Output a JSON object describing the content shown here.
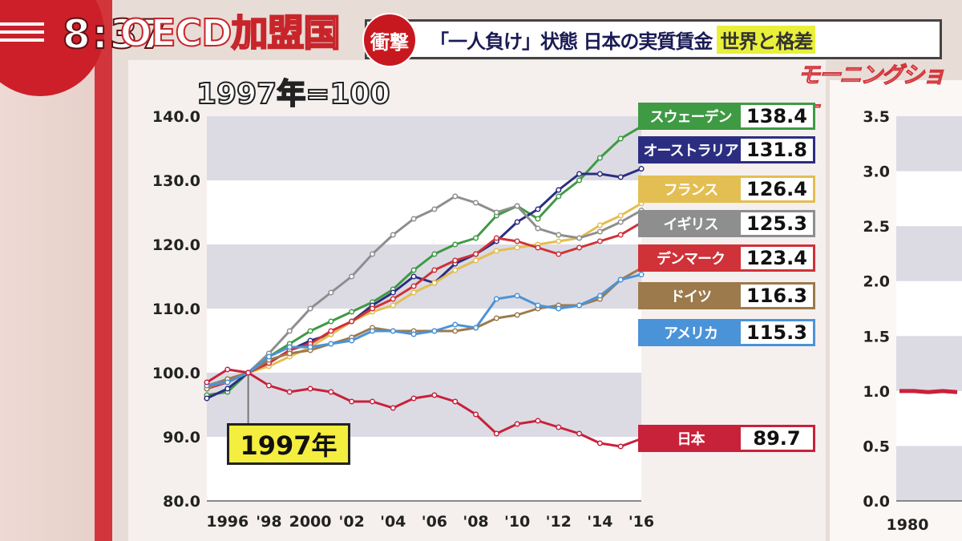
{
  "clock": "8:37",
  "header": {
    "title_bg": "OECD加盟国",
    "shock_badge": "衝撃",
    "headline": "「一人負け」状態 日本の実質賃金",
    "highlight": "世界と格差",
    "show_logo": "モーニングショー"
  },
  "base_label": "1997年=100",
  "callout_label": "1997年",
  "colors": {
    "sweden": "#3f9a44",
    "australia": "#2b2e80",
    "france": "#e3be52",
    "uk": "#8e8e8e",
    "denmark": "#cf3238",
    "germany": "#9c7a4c",
    "usa": "#4b93d8",
    "japan": "#c8213a"
  },
  "chart_data": [
    {
      "type": "line",
      "title": "1997年=100",
      "ylim": [
        80,
        140
      ],
      "yticks": [
        "140.0",
        "130.0",
        "120.0",
        "110.0",
        "100.0",
        "90.0",
        "80.0"
      ],
      "xticks": [
        "1996",
        "'98",
        "2000",
        "'02",
        "'04",
        "'06",
        "'08",
        "'10",
        "'12",
        "'14",
        "'16"
      ],
      "x": [
        1995,
        1996,
        1997,
        1998,
        1999,
        2000,
        2001,
        2002,
        2003,
        2004,
        2005,
        2006,
        2007,
        2008,
        2009,
        2010,
        2011,
        2012,
        2013,
        2014,
        2015,
        2016
      ],
      "series": [
        {
          "name": "スウェーデン",
          "key": "sweden",
          "end_value": "138.4",
          "values": [
            96.5,
            97.0,
            100,
            102.5,
            104.5,
            106.5,
            108.0,
            109.5,
            111.0,
            113.0,
            116.0,
            118.5,
            120.0,
            121.0,
            124.5,
            126.0,
            124.0,
            127.5,
            130.0,
            133.5,
            136.5,
            138.4
          ]
        },
        {
          "name": "オーストラリア",
          "key": "australia",
          "end_value": "131.8",
          "values": [
            96.0,
            97.5,
            100,
            101.5,
            103.5,
            105.0,
            106.0,
            108.0,
            110.5,
            112.5,
            115.0,
            114.0,
            117.0,
            118.5,
            120.5,
            123.5,
            125.5,
            128.5,
            131.0,
            131.0,
            130.5,
            131.8
          ]
        },
        {
          "name": "フランス",
          "key": "france",
          "end_value": "126.4",
          "values": [
            98.0,
            99.0,
            100,
            101.0,
            102.5,
            104.0,
            106.0,
            108.0,
            109.5,
            110.5,
            112.5,
            114.0,
            116.0,
            117.5,
            119.0,
            119.5,
            120.0,
            120.5,
            121.0,
            123.0,
            124.5,
            126.4
          ]
        },
        {
          "name": "イギリス",
          "key": "uk",
          "end_value": "125.3",
          "values": [
            98.0,
            99.0,
            100,
            103.0,
            106.5,
            110.0,
            112.5,
            115.0,
            118.5,
            121.5,
            124.0,
            125.5,
            127.5,
            126.5,
            125.0,
            126.0,
            122.5,
            121.5,
            121.0,
            122.0,
            123.5,
            125.3
          ]
        },
        {
          "name": "デンマーク",
          "key": "denmark",
          "end_value": "123.4",
          "values": [
            97.5,
            98.5,
            100,
            101.5,
            103.5,
            104.5,
            106.5,
            108.0,
            110.0,
            111.5,
            113.5,
            116.0,
            117.5,
            118.5,
            121.0,
            120.5,
            119.5,
            118.5,
            119.5,
            120.5,
            121.5,
            123.4
          ]
        },
        {
          "name": "ドイツ",
          "key": "germany",
          "end_value": "116.3",
          "values": [
            97.5,
            99.0,
            100,
            102.0,
            103.0,
            103.5,
            104.5,
            105.5,
            107.0,
            106.5,
            106.5,
            106.5,
            106.5,
            107.0,
            108.5,
            109.0,
            110.0,
            110.5,
            110.5,
            111.5,
            114.5,
            116.3
          ]
        },
        {
          "name": "アメリカ",
          "key": "usa",
          "end_value": "115.3",
          "values": [
            98.0,
            98.5,
            100,
            102.5,
            104.0,
            104.0,
            104.5,
            105.0,
            106.5,
            106.5,
            106.0,
            106.5,
            107.5,
            107.0,
            111.5,
            112.0,
            110.5,
            110.0,
            110.5,
            112.0,
            114.5,
            115.3
          ]
        },
        {
          "name": "日本",
          "key": "japan",
          "end_value": "89.7",
          "values": [
            98.5,
            100.5,
            100,
            98.0,
            97.0,
            97.5,
            97.0,
            95.5,
            95.5,
            94.5,
            96.0,
            96.5,
            95.5,
            93.5,
            90.5,
            92.0,
            92.5,
            91.5,
            90.5,
            89.0,
            88.5,
            89.7
          ]
        }
      ]
    },
    {
      "type": "line",
      "ylim": [
        0,
        3.5
      ],
      "yticks": [
        "3.5",
        "3.0",
        "2.5",
        "2.0",
        "1.5",
        "1.0",
        "0.5",
        "0.0"
      ],
      "xticks": [
        "1980"
      ],
      "series": [
        {
          "key": "japan",
          "x": [
            1979,
            1980,
            1981,
            1982,
            1983
          ],
          "values": [
            1.0,
            1.0,
            0.99,
            1.0,
            0.99
          ]
        }
      ]
    }
  ]
}
